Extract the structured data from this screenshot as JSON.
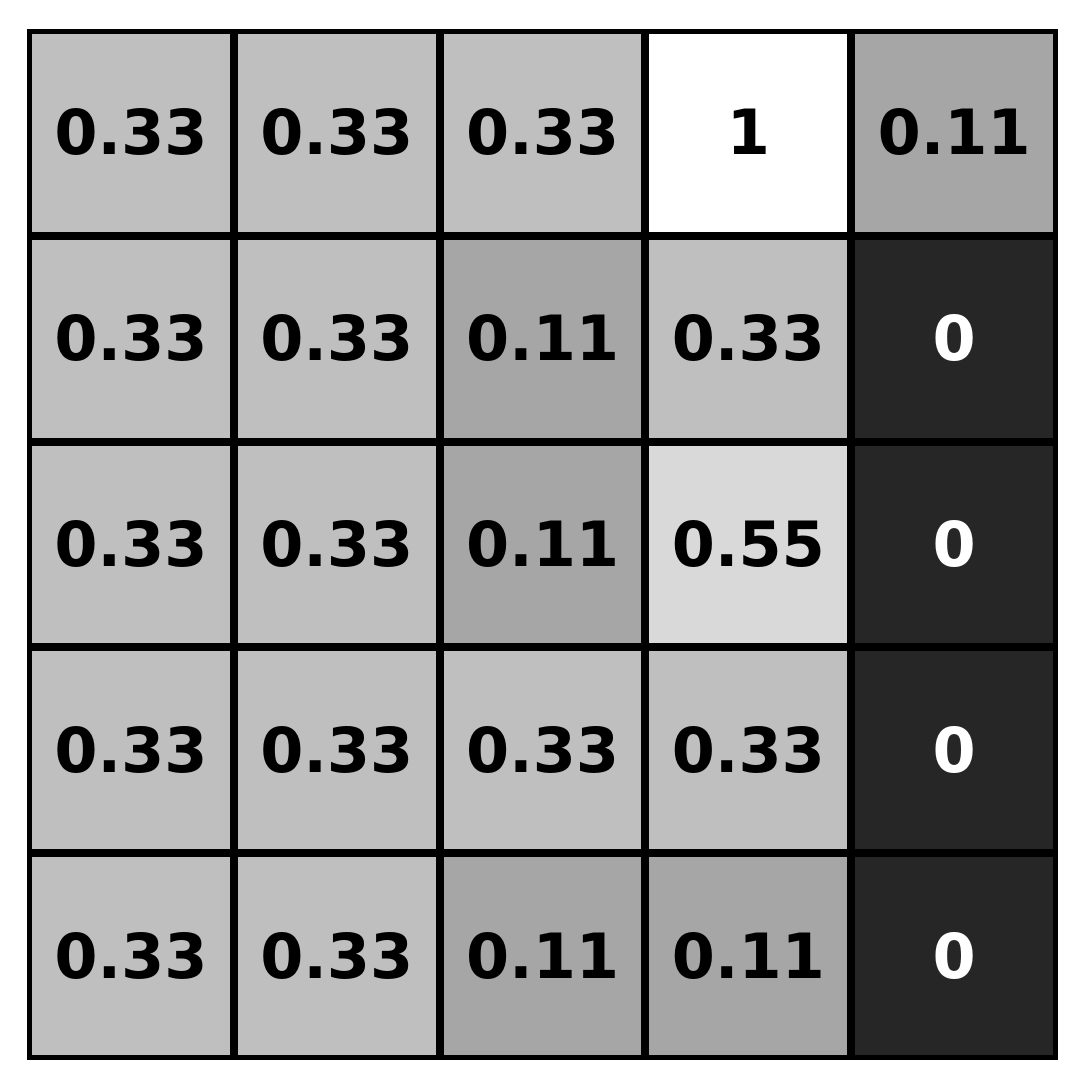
{
  "grid": {
    "rows": [
      {
        "cells": [
          {
            "value": "0.33",
            "fill": "#bfbfbf",
            "text": "#000000"
          },
          {
            "value": "0.33",
            "fill": "#bfbfbf",
            "text": "#000000"
          },
          {
            "value": "0.33",
            "fill": "#bfbfbf",
            "text": "#000000"
          },
          {
            "value": "1",
            "fill": "#ffffff",
            "text": "#000000"
          },
          {
            "value": "0.11",
            "fill": "#a6a6a6",
            "text": "#000000"
          }
        ]
      },
      {
        "cells": [
          {
            "value": "0.33",
            "fill": "#bfbfbf",
            "text": "#000000"
          },
          {
            "value": "0.33",
            "fill": "#bfbfbf",
            "text": "#000000"
          },
          {
            "value": "0.11",
            "fill": "#a6a6a6",
            "text": "#000000"
          },
          {
            "value": "0.33",
            "fill": "#bfbfbf",
            "text": "#000000"
          },
          {
            "value": "0",
            "fill": "#262626",
            "text": "#ffffff"
          }
        ]
      },
      {
        "cells": [
          {
            "value": "0.33",
            "fill": "#bfbfbf",
            "text": "#000000"
          },
          {
            "value": "0.33",
            "fill": "#bfbfbf",
            "text": "#000000"
          },
          {
            "value": "0.11",
            "fill": "#a6a6a6",
            "text": "#000000"
          },
          {
            "value": "0.55",
            "fill": "#d9d9d9",
            "text": "#000000"
          },
          {
            "value": "0",
            "fill": "#262626",
            "text": "#ffffff"
          }
        ]
      },
      {
        "cells": [
          {
            "value": "0.33",
            "fill": "#bfbfbf",
            "text": "#000000"
          },
          {
            "value": "0.33",
            "fill": "#bfbfbf",
            "text": "#000000"
          },
          {
            "value": "0.33",
            "fill": "#bfbfbf",
            "text": "#000000"
          },
          {
            "value": "0.33",
            "fill": "#bfbfbf",
            "text": "#000000"
          },
          {
            "value": "0",
            "fill": "#262626",
            "text": "#ffffff"
          }
        ]
      },
      {
        "cells": [
          {
            "value": "0.33",
            "fill": "#bfbfbf",
            "text": "#000000"
          },
          {
            "value": "0.33",
            "fill": "#bfbfbf",
            "text": "#000000"
          },
          {
            "value": "0.11",
            "fill": "#a6a6a6",
            "text": "#000000"
          },
          {
            "value": "0.11",
            "fill": "#a6a6a6",
            "text": "#000000"
          },
          {
            "value": "0",
            "fill": "#262626",
            "text": "#ffffff"
          }
        ]
      }
    ]
  }
}
